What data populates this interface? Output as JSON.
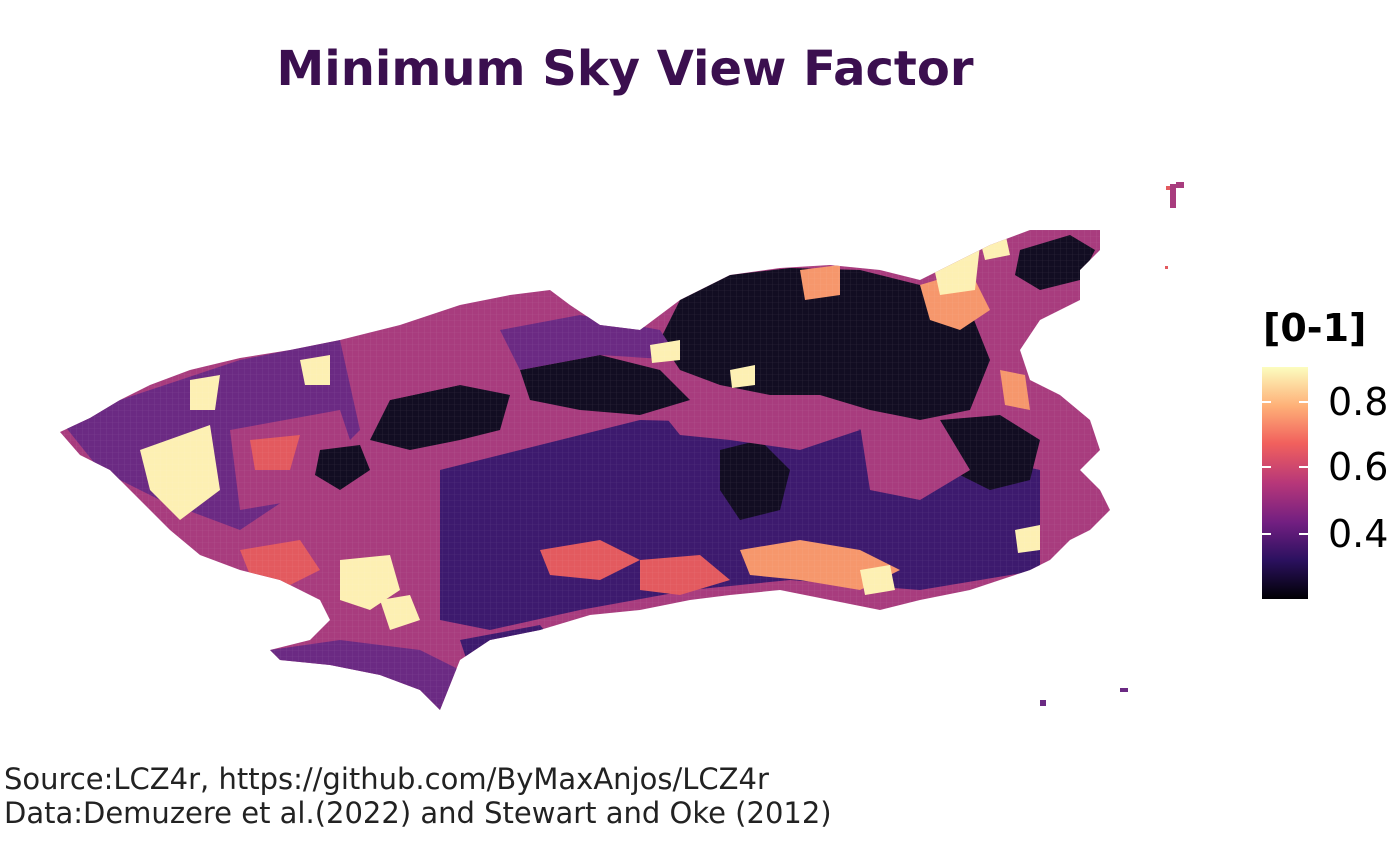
{
  "title": "Minimum Sky View Factor",
  "legend": {
    "title": "[0-1]",
    "ticks": [
      "0.8",
      "0.6",
      "0.4"
    ],
    "colors": [
      "#000004",
      "#2c1160",
      "#721f81",
      "#b73779",
      "#f1605d",
      "#feaf77",
      "#fcfdbf"
    ]
  },
  "caption": {
    "line1": "Source:LCZ4r, https://github.com/ByMaxAnjos/LCZ4r",
    "line2": "Data:Demuzere et al.(2022) and Stewart and Oke (2012)"
  },
  "map": {
    "colors": {
      "very_low": "#120d22",
      "low": "#3d1a6e",
      "mid_low": "#6b2a83",
      "mid": "#a83c7e",
      "mid_high": "#e35a5f",
      "high": "#f6976c",
      "very_high": "#fdf0b3"
    }
  }
}
